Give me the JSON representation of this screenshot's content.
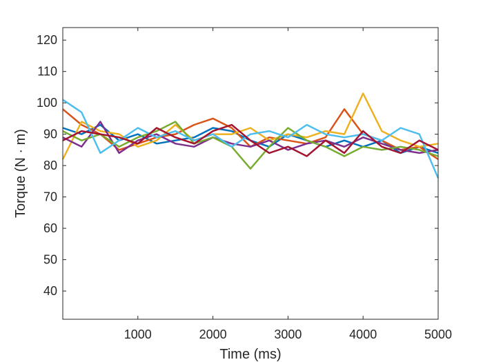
{
  "chart_data": {
    "type": "line",
    "title": "",
    "xlabel": "Time (ms)",
    "ylabel": "Torque (N · m)",
    "xlim": [
      0,
      5000
    ],
    "ylim": [
      31,
      124
    ],
    "xticks": [
      1000,
      2000,
      3000,
      4000,
      5000
    ],
    "yticks": [
      40,
      50,
      60,
      70,
      80,
      90,
      100,
      110,
      120
    ],
    "grid": false,
    "legend": "none",
    "x": [
      0,
      250,
      500,
      750,
      1000,
      1250,
      1500,
      1750,
      2000,
      2250,
      2500,
      2750,
      3000,
      3250,
      3500,
      3750,
      4000,
      4250,
      4500,
      4750,
      5000
    ],
    "series": [
      {
        "color": "#0072BD",
        "values": [
          92,
          90,
          93,
          88,
          90,
          87,
          88,
          89,
          92,
          91,
          88,
          86,
          90,
          88,
          86,
          88,
          86,
          88,
          84,
          86,
          84
        ]
      },
      {
        "color": "#D95319",
        "values": [
          98,
          93,
          90,
          85,
          87,
          89,
          90,
          93,
          95,
          92,
          86,
          89,
          88,
          87,
          89,
          98,
          90,
          88,
          85,
          86,
          82
        ]
      },
      {
        "color": "#EDB120",
        "values": [
          82,
          94,
          91,
          90,
          86,
          88,
          93,
          88,
          90,
          90,
          92,
          88,
          90,
          89,
          91,
          90,
          103,
          91,
          88,
          86,
          87
        ]
      },
      {
        "color": "#7E2F8E",
        "values": [
          89,
          86,
          94,
          84,
          88,
          90,
          87,
          86,
          89,
          87,
          86,
          88,
          85,
          87,
          88,
          86,
          89,
          87,
          85,
          84,
          85
        ]
      },
      {
        "color": "#77AC30",
        "values": [
          91,
          88,
          90,
          86,
          89,
          91,
          94,
          87,
          89,
          86,
          79,
          86,
          92,
          88,
          86,
          83,
          86,
          85,
          86,
          85,
          83
        ]
      },
      {
        "color": "#4DBEEE",
        "values": [
          101,
          97,
          84,
          88,
          92,
          89,
          91,
          88,
          90,
          86,
          90,
          91,
          89,
          93,
          90,
          89,
          90,
          88,
          92,
          90,
          76
        ]
      },
      {
        "color": "#A2142F",
        "values": [
          88,
          91,
          90,
          89,
          87,
          92,
          89,
          87,
          91,
          93,
          88,
          84,
          86,
          83,
          88,
          84,
          91,
          86,
          84,
          88,
          85
        ]
      }
    ]
  }
}
